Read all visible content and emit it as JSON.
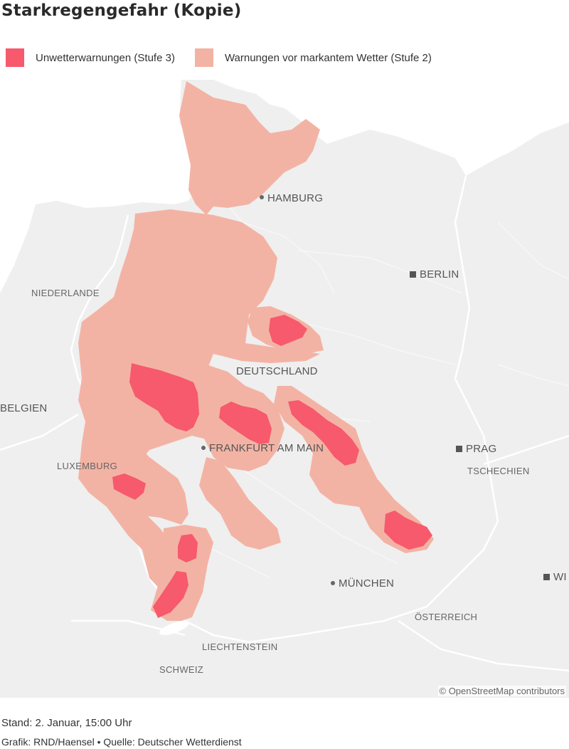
{
  "title": "Starkregengefahr (Kopie)",
  "legend": {
    "items": [
      {
        "label": "Unwetterwarnungen (Stufe 3)",
        "color": "#f65a6c"
      },
      {
        "label": "Warnungen vor markantem Wetter (Stufe 2)",
        "color": "#f3b3a4"
      }
    ]
  },
  "map": {
    "labels": {
      "hamburg": "HAMBURG",
      "berlin": "BERLIN",
      "niederlande": "NIEDERLANDE",
      "deutschland": "DEUTSCHLAND",
      "belgien": "BELGIEN",
      "frankfurt": "FRANKFURT AM MAIN",
      "prag": "PRAG",
      "luxemburg": "LUXEMBURG",
      "tschechien": "TSCHECHIEN",
      "wien": "WI",
      "muenchen": "MÜNCHEN",
      "oesterreich": "ÖSTERREICH",
      "liechtenstein": "LIECHTENSTEIN",
      "schweiz": "SCHWEIZ"
    },
    "attribution": "© OpenStreetMap contributors",
    "colors": {
      "land": "#efefef",
      "water": "#ffffff",
      "level3": "#f65a6c",
      "level2": "#f3b3a4"
    }
  },
  "footer": {
    "stand": "Stand: 2. Januar, 15:00 Uhr",
    "credit": "Grafik: RND/Haensel • Quelle: Deutscher Wetterdienst"
  }
}
